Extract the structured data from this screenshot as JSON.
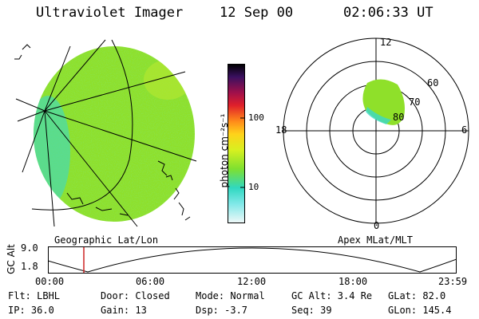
{
  "header": {
    "instrument": "Ultraviolet Imager",
    "date": "12 Sep 00",
    "time": "02:06:33 UT"
  },
  "colorbar": {
    "unit_label": "photon cm⁻²s⁻¹",
    "ticks": [
      "100",
      "10"
    ]
  },
  "polar_plot": {
    "mlt_labels": {
      "top": "12",
      "bottom": "0",
      "left": "18",
      "right": "6"
    },
    "lat_labels": [
      "60",
      "70",
      "80"
    ]
  },
  "panel_labels": {
    "geo": "Geographic Lat/Lon",
    "apex": "Apex MLat/MLT"
  },
  "timeline": {
    "axis_title": "GC Alt",
    "y_ticks": [
      "9.0",
      "1.8"
    ],
    "x_ticks": [
      "00:00",
      "06:00",
      "12:00",
      "18:00",
      "23:59"
    ],
    "cursor_time": "02:06:33"
  },
  "status": {
    "flt": "Flt: LBHL",
    "ip": "IP: 36.0",
    "door": "Door: Closed",
    "gain": "Gain: 13",
    "mode": "Mode: Normal",
    "dsp": "Dsp:    -3.7",
    "gc_alt": "GC Alt: 3.4 Re",
    "seq": "Seq: 39",
    "glat": "GLat:  82.0",
    "glon": "GLon: 145.4"
  },
  "colors": {
    "image_green": "#8fe02a",
    "image_cyan": "#3ad8c8",
    "timeline_cursor": "#cc2222"
  }
}
